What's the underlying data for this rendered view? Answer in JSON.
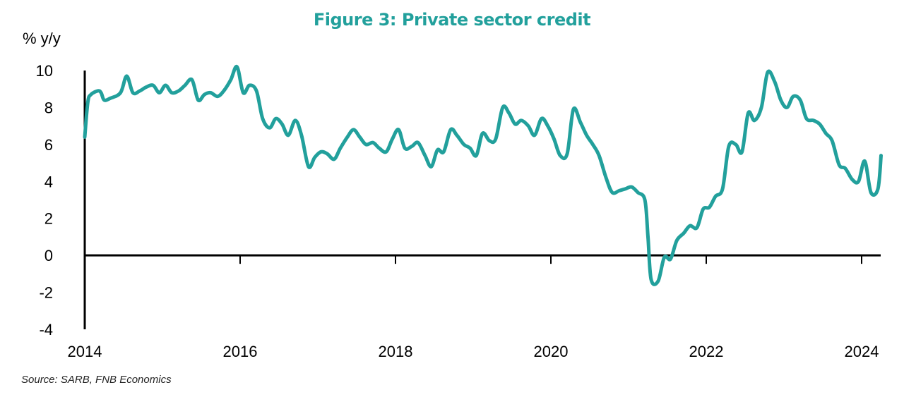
{
  "chart_data": {
    "type": "line",
    "title": "Figure 3: Private sector credit",
    "ylabel": "% y/y",
    "xlabel": "",
    "source": "Source: SARB, FNB Economics",
    "ylim": [
      -4,
      10
    ],
    "xlim": [
      2014,
      2024.25
    ],
    "yticks": [
      10,
      8,
      6,
      4,
      2,
      0,
      -2,
      -4
    ],
    "xticks": [
      2014,
      2016,
      2018,
      2020,
      2022,
      2024
    ],
    "color": "#22a09c",
    "series": [
      {
        "name": "Private sector credit",
        "points": [
          [
            2014.0,
            6.4
          ],
          [
            2014.04,
            8.3
          ],
          [
            2014.08,
            8.7
          ],
          [
            2014.17,
            8.9
          ],
          [
            2014.21,
            8.8
          ],
          [
            2014.25,
            8.4
          ],
          [
            2014.33,
            8.5
          ],
          [
            2014.46,
            8.8
          ],
          [
            2014.54,
            9.7
          ],
          [
            2014.62,
            8.8
          ],
          [
            2014.71,
            8.9
          ],
          [
            2014.79,
            9.1
          ],
          [
            2014.88,
            9.2
          ],
          [
            2014.96,
            8.8
          ],
          [
            2015.04,
            9.2
          ],
          [
            2015.12,
            8.8
          ],
          [
            2015.21,
            8.9
          ],
          [
            2015.29,
            9.2
          ],
          [
            2015.38,
            9.5
          ],
          [
            2015.46,
            8.4
          ],
          [
            2015.54,
            8.7
          ],
          [
            2015.62,
            8.8
          ],
          [
            2015.71,
            8.6
          ],
          [
            2015.79,
            8.9
          ],
          [
            2015.88,
            9.5
          ],
          [
            2015.96,
            10.2
          ],
          [
            2016.04,
            8.8
          ],
          [
            2016.12,
            9.2
          ],
          [
            2016.21,
            8.9
          ],
          [
            2016.29,
            7.4
          ],
          [
            2016.38,
            6.9
          ],
          [
            2016.46,
            7.4
          ],
          [
            2016.54,
            7.1
          ],
          [
            2016.62,
            6.5
          ],
          [
            2016.71,
            7.3
          ],
          [
            2016.79,
            6.5
          ],
          [
            2016.88,
            4.8
          ],
          [
            2016.96,
            5.3
          ],
          [
            2017.04,
            5.6
          ],
          [
            2017.12,
            5.5
          ],
          [
            2017.21,
            5.2
          ],
          [
            2017.29,
            5.8
          ],
          [
            2017.38,
            6.4
          ],
          [
            2017.46,
            6.8
          ],
          [
            2017.54,
            6.4
          ],
          [
            2017.62,
            6.0
          ],
          [
            2017.71,
            6.1
          ],
          [
            2017.79,
            5.8
          ],
          [
            2017.88,
            5.6
          ],
          [
            2017.96,
            6.3
          ],
          [
            2018.04,
            6.8
          ],
          [
            2018.12,
            5.8
          ],
          [
            2018.21,
            5.9
          ],
          [
            2018.29,
            6.1
          ],
          [
            2018.38,
            5.4
          ],
          [
            2018.46,
            4.8
          ],
          [
            2018.54,
            5.7
          ],
          [
            2018.62,
            5.6
          ],
          [
            2018.71,
            6.8
          ],
          [
            2018.79,
            6.5
          ],
          [
            2018.88,
            6.0
          ],
          [
            2018.96,
            5.8
          ],
          [
            2019.04,
            5.4
          ],
          [
            2019.12,
            6.6
          ],
          [
            2019.21,
            6.2
          ],
          [
            2019.29,
            6.3
          ],
          [
            2019.38,
            8.0
          ],
          [
            2019.46,
            7.7
          ],
          [
            2019.54,
            7.1
          ],
          [
            2019.62,
            7.3
          ],
          [
            2019.71,
            7.0
          ],
          [
            2019.79,
            6.5
          ],
          [
            2019.88,
            7.4
          ],
          [
            2019.96,
            7.0
          ],
          [
            2020.04,
            6.3
          ],
          [
            2020.12,
            5.4
          ],
          [
            2020.21,
            5.5
          ],
          [
            2020.29,
            7.9
          ],
          [
            2020.38,
            7.2
          ],
          [
            2020.46,
            6.5
          ],
          [
            2020.54,
            6.0
          ],
          [
            2020.62,
            5.4
          ],
          [
            2020.71,
            4.2
          ],
          [
            2020.79,
            3.4
          ],
          [
            2020.88,
            3.5
          ],
          [
            2020.96,
            3.6
          ],
          [
            2021.04,
            3.7
          ],
          [
            2021.12,
            3.4
          ],
          [
            2021.21,
            3.0
          ],
          [
            2021.25,
            1.0
          ],
          [
            2021.29,
            -1.3
          ],
          [
            2021.38,
            -1.4
          ],
          [
            2021.46,
            -0.1
          ],
          [
            2021.54,
            -0.2
          ],
          [
            2021.62,
            0.8
          ],
          [
            2021.71,
            1.2
          ],
          [
            2021.79,
            1.6
          ],
          [
            2021.88,
            1.5
          ],
          [
            2021.96,
            2.5
          ],
          [
            2022.04,
            2.6
          ],
          [
            2022.12,
            3.2
          ],
          [
            2022.21,
            3.6
          ],
          [
            2022.29,
            5.9
          ],
          [
            2022.38,
            6.0
          ],
          [
            2022.46,
            5.6
          ],
          [
            2022.54,
            7.7
          ],
          [
            2022.62,
            7.3
          ],
          [
            2022.71,
            8.0
          ],
          [
            2022.79,
            9.9
          ],
          [
            2022.88,
            9.4
          ],
          [
            2022.96,
            8.4
          ],
          [
            2023.04,
            8.0
          ],
          [
            2023.12,
            8.6
          ],
          [
            2023.21,
            8.4
          ],
          [
            2023.29,
            7.4
          ],
          [
            2023.38,
            7.3
          ],
          [
            2023.46,
            7.1
          ],
          [
            2023.54,
            6.6
          ],
          [
            2023.62,
            6.2
          ],
          [
            2023.71,
            4.9
          ],
          [
            2023.79,
            4.7
          ],
          [
            2023.88,
            4.1
          ],
          [
            2023.96,
            4.0
          ],
          [
            2024.04,
            5.1
          ],
          [
            2024.12,
            3.4
          ],
          [
            2024.21,
            3.6
          ],
          [
            2024.25,
            5.4
          ]
        ]
      }
    ]
  }
}
